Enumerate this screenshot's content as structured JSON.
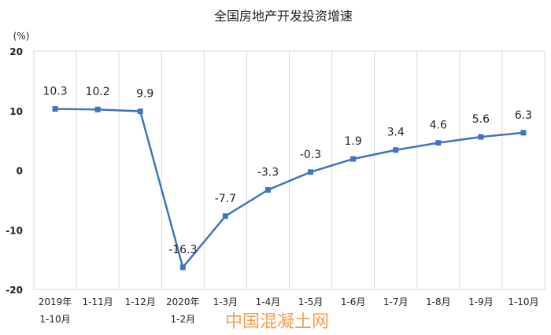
{
  "chart_data": {
    "type": "line",
    "title": "全国房地产开发投资增速",
    "ylabel": "(%)",
    "xlabel": "",
    "categories": [
      [
        "2019年",
        "1-10月"
      ],
      [
        "1-11月"
      ],
      [
        "1-12月"
      ],
      [
        "2020年",
        "1-2月"
      ],
      [
        "1-3月"
      ],
      [
        "1-4月"
      ],
      [
        "1-5月"
      ],
      [
        "1-6月"
      ],
      [
        "1-7月"
      ],
      [
        "1-8月"
      ],
      [
        "1-9月"
      ],
      [
        "1-10月"
      ]
    ],
    "values": [
      10.3,
      10.2,
      9.9,
      -16.3,
      -7.7,
      -3.3,
      -0.3,
      1.9,
      3.4,
      4.6,
      5.6,
      6.3
    ],
    "data_labels": [
      "10.3",
      "10.2",
      "9.9",
      "-16.3",
      "-7.7",
      "-3.3",
      "-0.3",
      "1.9",
      "3.4",
      "4.6",
      "5.6",
      "6.3"
    ],
    "yticks": [
      20,
      10,
      0,
      -10,
      -20
    ],
    "ylim": [
      -20,
      20
    ],
    "grid": "vertical category separators",
    "legend": "none",
    "marker": "square",
    "colors": {
      "line": "#3f74c2",
      "grid": "#d9d9d9"
    }
  },
  "watermark": {
    "text": "中国混凝土网",
    "color": "#f0a050"
  }
}
